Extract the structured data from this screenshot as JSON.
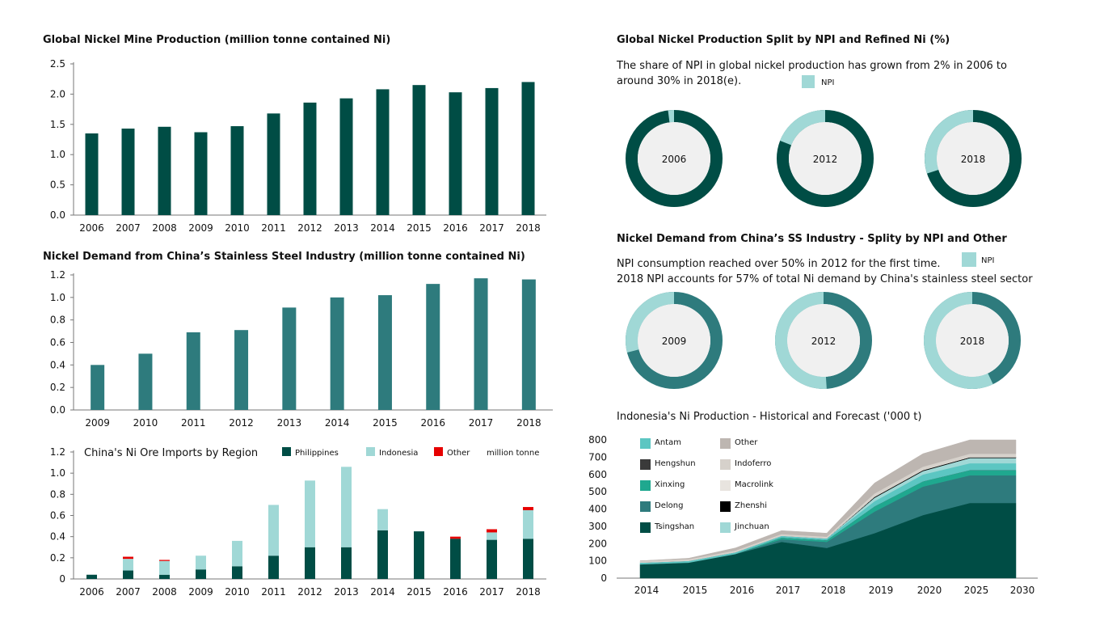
{
  "colors": {
    "dark_green": "#004d45",
    "teal": "#2e7b7d",
    "light_teal": "#a0d8d6",
    "red": "#e60000",
    "donut_center": "#f0f0f0",
    "axis": "#777777"
  },
  "chart_data": [
    {
      "id": "mine",
      "type": "bar",
      "title": "Global Nickel Mine Production (million tonne contained Ni)",
      "categories": [
        "2006",
        "2007",
        "2008",
        "2009",
        "2010",
        "2011",
        "2012",
        "2013",
        "2014",
        "2015",
        "2016",
        "2017",
        "2018"
      ],
      "values": [
        1.35,
        1.43,
        1.46,
        1.37,
        1.47,
        1.68,
        1.86,
        1.93,
        2.08,
        2.15,
        2.03,
        2.1,
        2.2
      ],
      "yticks": [
        "0.0",
        "0.5",
        "1.0",
        "1.5",
        "2.0",
        "2.5"
      ],
      "ylim": [
        0,
        2.5
      ]
    },
    {
      "id": "china_ss",
      "type": "bar",
      "title": "Nickel Demand from China’s Stainless Steel Industry (million tonne contained Ni)",
      "categories": [
        "2009",
        "2010",
        "2011",
        "2012",
        "2013",
        "2014",
        "2015",
        "2016",
        "2017",
        "2018"
      ],
      "values": [
        0.4,
        0.5,
        0.69,
        0.71,
        0.91,
        1.0,
        1.02,
        1.12,
        1.17,
        1.16
      ],
      "yticks": [
        "0.0",
        "0.2",
        "0.4",
        "0.6",
        "0.8",
        "1.0",
        "1.2"
      ],
      "ylim": [
        0,
        1.2
      ]
    },
    {
      "id": "ore",
      "type": "bar",
      "stacked": true,
      "title": "China's Ni Ore Imports by Region",
      "unit": "million tonne",
      "categories": [
        "2006",
        "2007",
        "2008",
        "2009",
        "2010",
        "2011",
        "2012",
        "2013",
        "2014",
        "2015",
        "2016",
        "2017",
        "2018"
      ],
      "series": [
        {
          "name": "Philippines",
          "values": [
            0.04,
            0.08,
            0.04,
            0.09,
            0.12,
            0.22,
            0.3,
            0.3,
            0.46,
            0.45,
            0.38,
            0.37,
            0.38
          ]
        },
        {
          "name": "Indonesia",
          "values": [
            0.0,
            0.11,
            0.13,
            0.13,
            0.24,
            0.48,
            0.63,
            0.76,
            0.2,
            0.0,
            0.0,
            0.07,
            0.27
          ]
        },
        {
          "name": "Other",
          "values": [
            0.0,
            0.02,
            0.01,
            0.0,
            0.0,
            0.0,
            0.0,
            0.0,
            0.0,
            0.0,
            0.02,
            0.03,
            0.03
          ]
        }
      ],
      "yticks": [
        "0",
        "0.2",
        "0.4",
        "0.6",
        "0.8",
        "1.0",
        "1.2"
      ],
      "ylim": [
        0,
        1.2
      ]
    },
    {
      "id": "npi_split",
      "type": "pie",
      "title": "Global Nickel Production Split by NPI and Refined Ni (%)",
      "description": [
        "The share of NPI in global nickel production has grown from 2% in 2006 to",
        "around 30% in 2018(e)."
      ],
      "legend": "NPI",
      "donuts": [
        {
          "label": "2006",
          "npi": 0.02
        },
        {
          "label": "2012",
          "npi": 0.19
        },
        {
          "label": "2018",
          "npi": 0.3
        }
      ]
    },
    {
      "id": "china_npi",
      "type": "pie",
      "title": "Nickel Demand from China’s SS Industry - Splity by NPI and Other",
      "description": [
        "NPI consumption reached over 50% in 2012 for the first time.",
        "2018 NPI accounts for 57% of total Ni demand by China's stainless steel sector"
      ],
      "legend": "NPI",
      "donuts": [
        {
          "label": "2009",
          "npi": 0.29
        },
        {
          "label": "2012",
          "npi": 0.51
        },
        {
          "label": "2018",
          "npi": 0.57
        }
      ]
    },
    {
      "id": "indonesia",
      "type": "area",
      "stacked": true,
      "title": "Indonesia's Ni Production - Historical and Forecast ('000 t)",
      "x": [
        "2014",
        "2015",
        "2016",
        "2017",
        "2018",
        "2019",
        "2020",
        "2025",
        "2030"
      ],
      "yticks": [
        "0",
        "100",
        "200",
        "300",
        "400",
        "500",
        "600",
        "700",
        "800"
      ],
      "ylim": [
        0,
        800
      ],
      "series": [
        {
          "name": "Tsingshan",
          "color": "#004d45",
          "values": [
            80,
            90,
            140,
            210,
            175,
            260,
            365,
            435,
            435
          ]
        },
        {
          "name": "Delong",
          "color": "#2e7b7d",
          "values": [
            0,
            0,
            0,
            15,
            35,
            125,
            165,
            160,
            160
          ]
        },
        {
          "name": "Xinxing",
          "color": "#1fa88f",
          "values": [
            0,
            0,
            0,
            10,
            10,
            30,
            30,
            30,
            30
          ]
        },
        {
          "name": "Hengshun",
          "color": "#3a3a3a",
          "values": [
            0,
            0,
            0,
            0,
            0,
            0,
            0,
            0,
            0
          ]
        },
        {
          "name": "Antam",
          "color": "#5cc6c2",
          "values": [
            10,
            10,
            10,
            10,
            10,
            30,
            40,
            40,
            40
          ]
        },
        {
          "name": "Jinchuan",
          "color": "#a0d8d6",
          "values": [
            0,
            0,
            0,
            0,
            0,
            20,
            20,
            30,
            30
          ]
        },
        {
          "name": "Zhenshi",
          "color": "#000000",
          "values": [
            0,
            0,
            0,
            0,
            0,
            5,
            5,
            5,
            5
          ]
        },
        {
          "name": "Macrolink",
          "color": "#e8e4df",
          "values": [
            0,
            0,
            0,
            0,
            0,
            0,
            0,
            0,
            0
          ]
        },
        {
          "name": "Indoferro",
          "color": "#d6d1cb",
          "values": [
            10,
            10,
            10,
            10,
            10,
            20,
            20,
            20,
            20
          ]
        },
        {
          "name": "Other",
          "color": "#bdb6b1",
          "values": [
            0,
            5,
            15,
            20,
            20,
            60,
            75,
            80,
            80
          ]
        }
      ],
      "legend_left": [
        "Antam",
        "Hengshun",
        "Xinxing",
        "Delong",
        "Tsingshan"
      ],
      "legend_right": [
        "Other",
        "Indoferro",
        "Macrolink",
        "Zhenshi",
        "Jinchuan"
      ]
    }
  ]
}
